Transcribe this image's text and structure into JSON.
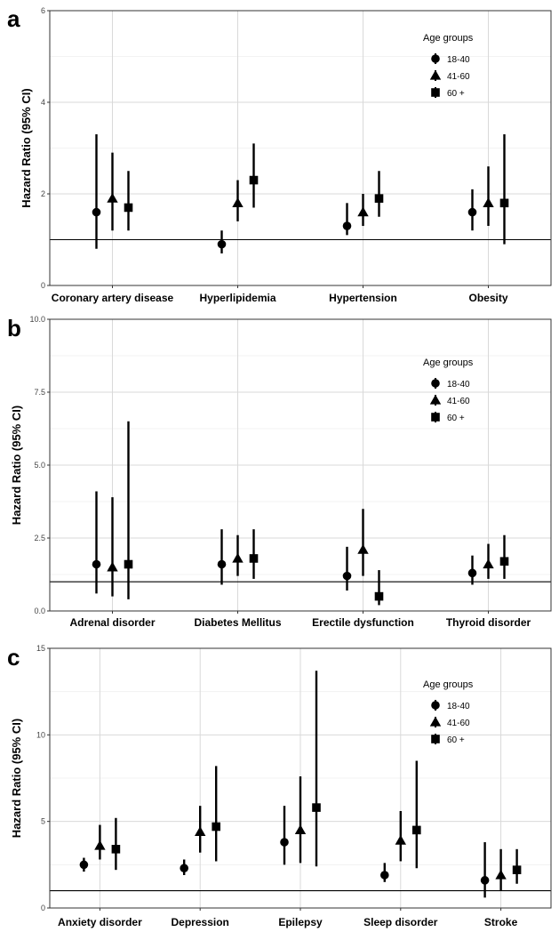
{
  "chart_data": [
    {
      "type": "errorbar",
      "panel": "a",
      "ylabel": "Hazard Ratio (95% CI)",
      "ylim": [
        0,
        6
      ],
      "yticks": [
        0,
        2,
        4,
        6
      ],
      "reference_line": 1,
      "grid": true,
      "legend": {
        "title": "Age groups",
        "placement": "top-right",
        "entries": [
          "18-40",
          "41-60",
          "60 +"
        ]
      },
      "categories": [
        "Coronary artery disease",
        "Hyperlipidemia",
        "Hypertension",
        "Obesity"
      ],
      "series": [
        {
          "name": "18-40",
          "marker": "circle",
          "points": [
            {
              "y": 1.6,
              "low": 0.8,
              "high": 3.3
            },
            {
              "y": 0.9,
              "low": 0.7,
              "high": 1.2
            },
            {
              "y": 1.3,
              "low": 1.1,
              "high": 1.8
            },
            {
              "y": 1.6,
              "low": 1.2,
              "high": 2.1
            }
          ]
        },
        {
          "name": "41-60",
          "marker": "triangle",
          "points": [
            {
              "y": 1.9,
              "low": 1.2,
              "high": 2.9
            },
            {
              "y": 1.8,
              "low": 1.4,
              "high": 2.3
            },
            {
              "y": 1.6,
              "low": 1.3,
              "high": 2.0
            },
            {
              "y": 1.8,
              "low": 1.3,
              "high": 2.6
            }
          ]
        },
        {
          "name": "60 +",
          "marker": "square",
          "points": [
            {
              "y": 1.7,
              "low": 1.2,
              "high": 2.5
            },
            {
              "y": 2.3,
              "low": 1.7,
              "high": 3.1
            },
            {
              "y": 1.9,
              "low": 1.5,
              "high": 2.5
            },
            {
              "y": 1.8,
              "low": 0.9,
              "high": 3.3
            }
          ]
        }
      ]
    },
    {
      "type": "errorbar",
      "panel": "b",
      "ylabel": "Hazard Ratio (95% CI)",
      "ylim": [
        0,
        10
      ],
      "yticks": [
        0.0,
        2.5,
        5.0,
        7.5,
        10.0
      ],
      "ytick_labels": [
        "0.0",
        "2.5",
        "5.0",
        "7.5",
        "10.0"
      ],
      "reference_line": 1,
      "grid": true,
      "legend": {
        "title": "Age groups",
        "placement": "top-right",
        "entries": [
          "18-40",
          "41-60",
          "60 +"
        ]
      },
      "categories": [
        "Adrenal disorder",
        "Diabetes Mellitus",
        "Erectile dysfunction",
        "Thyroid disorder"
      ],
      "series": [
        {
          "name": "18-40",
          "marker": "circle",
          "points": [
            {
              "y": 1.6,
              "low": 0.6,
              "high": 4.1
            },
            {
              "y": 1.6,
              "low": 0.9,
              "high": 2.8
            },
            {
              "y": 1.2,
              "low": 0.7,
              "high": 2.2
            },
            {
              "y": 1.3,
              "low": 0.9,
              "high": 1.9
            }
          ]
        },
        {
          "name": "41-60",
          "marker": "triangle",
          "points": [
            {
              "y": 1.5,
              "low": 0.5,
              "high": 3.9
            },
            {
              "y": 1.8,
              "low": 1.2,
              "high": 2.6
            },
            {
              "y": 2.1,
              "low": 1.2,
              "high": 3.5
            },
            {
              "y": 1.6,
              "low": 1.1,
              "high": 2.3
            }
          ]
        },
        {
          "name": "60 +",
          "marker": "square",
          "points": [
            {
              "y": 1.6,
              "low": 0.4,
              "high": 6.5
            },
            {
              "y": 1.8,
              "low": 1.1,
              "high": 2.8
            },
            {
              "y": 0.5,
              "low": 0.2,
              "high": 1.4
            },
            {
              "y": 1.7,
              "low": 1.1,
              "high": 2.6
            }
          ]
        }
      ]
    },
    {
      "type": "errorbar",
      "panel": "c",
      "ylabel": "Hazard Ratio (95% CI)",
      "ylim": [
        0,
        15
      ],
      "yticks": [
        0,
        5,
        10,
        15
      ],
      "reference_line": 1,
      "grid": true,
      "legend": {
        "title": "Age groups",
        "placement": "top-right",
        "entries": [
          "18-40",
          "41-60",
          "60 +"
        ]
      },
      "categories": [
        "Anxiety disorder",
        "Depression",
        "Epilepsy",
        "Sleep disorder",
        "Stroke"
      ],
      "series": [
        {
          "name": "18-40",
          "marker": "circle",
          "points": [
            {
              "y": 2.5,
              "low": 2.1,
              "high": 2.9
            },
            {
              "y": 2.3,
              "low": 1.9,
              "high": 2.8
            },
            {
              "y": 3.8,
              "low": 2.5,
              "high": 5.9
            },
            {
              "y": 1.9,
              "low": 1.5,
              "high": 2.6
            },
            {
              "y": 1.6,
              "low": 0.6,
              "high": 3.8
            }
          ]
        },
        {
          "name": "41-60",
          "marker": "triangle",
          "points": [
            {
              "y": 3.6,
              "low": 2.8,
              "high": 4.8
            },
            {
              "y": 4.4,
              "low": 3.2,
              "high": 5.9
            },
            {
              "y": 4.5,
              "low": 2.6,
              "high": 7.6
            },
            {
              "y": 3.9,
              "low": 2.7,
              "high": 5.6
            },
            {
              "y": 1.9,
              "low": 1.0,
              "high": 3.4
            }
          ]
        },
        {
          "name": "60 +",
          "marker": "square",
          "points": [
            {
              "y": 3.4,
              "low": 2.2,
              "high": 5.2
            },
            {
              "y": 4.7,
              "low": 2.7,
              "high": 8.2
            },
            {
              "y": 5.8,
              "low": 2.4,
              "high": 13.7
            },
            {
              "y": 4.5,
              "low": 2.3,
              "high": 8.5
            },
            {
              "y": 2.2,
              "low": 1.4,
              "high": 3.4
            }
          ]
        }
      ]
    }
  ],
  "style": {
    "panel_background": "#ffffff",
    "panel_border": "#333333",
    "grid_major": "#d9d9d9",
    "grid_minor": "#efefef",
    "mark_color": "#000000",
    "ref_line_color": "#000000"
  }
}
